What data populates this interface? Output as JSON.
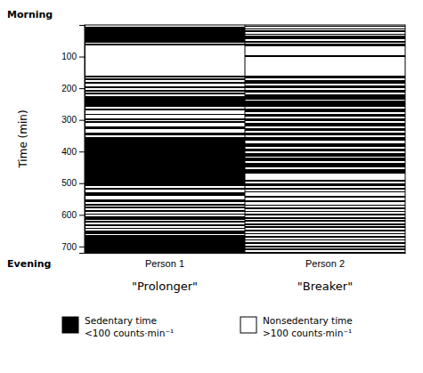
{
  "chart_data": {
    "type": "timeline",
    "ylabel": "Time (min)",
    "ylim": [
      720,
      0
    ],
    "yticks": [
      100,
      200,
      300,
      400,
      500,
      600,
      700
    ],
    "top_label": "Morning",
    "bottom_label": "Evening",
    "categories": [
      "Person 1",
      "Person 2"
    ],
    "category_annotations": [
      "\"Prolonger\"",
      "\"Breaker\""
    ],
    "series": [
      {
        "name": "Sedentary time\n<100 counts·min⁻¹",
        "color": "black"
      },
      {
        "name": "Nonsedentary time\n>100 counts·min⁻¹",
        "color": "white"
      }
    ],
    "legend": "bottom",
    "segments": [
      [
        {
          "start": 0,
          "end": 5,
          "series": 1
        },
        {
          "start": 5,
          "end": 55,
          "series": 0
        },
        {
          "start": 55,
          "end": 60,
          "series": 1
        },
        {
          "start": 60,
          "end": 65,
          "series": 0
        },
        {
          "start": 65,
          "end": 160,
          "series": 1
        },
        {
          "start": 160,
          "end": 165,
          "series": 0
        },
        {
          "start": 165,
          "end": 170,
          "series": 1
        },
        {
          "start": 170,
          "end": 175,
          "series": 0
        },
        {
          "start": 175,
          "end": 180,
          "series": 1
        },
        {
          "start": 180,
          "end": 185,
          "series": 0
        },
        {
          "start": 185,
          "end": 195,
          "series": 1
        },
        {
          "start": 195,
          "end": 200,
          "series": 0
        },
        {
          "start": 200,
          "end": 205,
          "series": 1
        },
        {
          "start": 205,
          "end": 210,
          "series": 0
        },
        {
          "start": 210,
          "end": 215,
          "series": 1
        },
        {
          "start": 215,
          "end": 220,
          "series": 0
        },
        {
          "start": 220,
          "end": 225,
          "series": 1
        },
        {
          "start": 225,
          "end": 260,
          "series": 0
        },
        {
          "start": 260,
          "end": 265,
          "series": 1
        },
        {
          "start": 265,
          "end": 270,
          "series": 0
        },
        {
          "start": 270,
          "end": 280,
          "series": 1
        },
        {
          "start": 280,
          "end": 285,
          "series": 0
        },
        {
          "start": 285,
          "end": 295,
          "series": 1
        },
        {
          "start": 295,
          "end": 300,
          "series": 0
        },
        {
          "start": 300,
          "end": 305,
          "series": 1
        },
        {
          "start": 305,
          "end": 310,
          "series": 0
        },
        {
          "start": 310,
          "end": 320,
          "series": 1
        },
        {
          "start": 320,
          "end": 330,
          "series": 0
        },
        {
          "start": 330,
          "end": 340,
          "series": 1
        },
        {
          "start": 340,
          "end": 350,
          "series": 0
        },
        {
          "start": 350,
          "end": 355,
          "series": 1
        },
        {
          "start": 355,
          "end": 510,
          "series": 0
        },
        {
          "start": 510,
          "end": 515,
          "series": 1
        },
        {
          "start": 515,
          "end": 520,
          "series": 0
        },
        {
          "start": 520,
          "end": 530,
          "series": 1
        },
        {
          "start": 530,
          "end": 540,
          "series": 0
        },
        {
          "start": 540,
          "end": 550,
          "series": 1
        },
        {
          "start": 550,
          "end": 560,
          "series": 0
        },
        {
          "start": 560,
          "end": 565,
          "series": 1
        },
        {
          "start": 565,
          "end": 570,
          "series": 0
        },
        {
          "start": 570,
          "end": 575,
          "series": 1
        },
        {
          "start": 575,
          "end": 580,
          "series": 0
        },
        {
          "start": 580,
          "end": 585,
          "series": 1
        },
        {
          "start": 585,
          "end": 590,
          "series": 0
        },
        {
          "start": 590,
          "end": 595,
          "series": 1
        },
        {
          "start": 595,
          "end": 600,
          "series": 0
        },
        {
          "start": 600,
          "end": 605,
          "series": 1
        },
        {
          "start": 605,
          "end": 615,
          "series": 0
        },
        {
          "start": 615,
          "end": 620,
          "series": 1
        },
        {
          "start": 620,
          "end": 625,
          "series": 0
        },
        {
          "start": 625,
          "end": 630,
          "series": 1
        },
        {
          "start": 630,
          "end": 635,
          "series": 0
        },
        {
          "start": 635,
          "end": 640,
          "series": 1
        },
        {
          "start": 640,
          "end": 645,
          "series": 0
        },
        {
          "start": 645,
          "end": 650,
          "series": 1
        },
        {
          "start": 650,
          "end": 660,
          "series": 0
        },
        {
          "start": 660,
          "end": 665,
          "series": 1
        },
        {
          "start": 665,
          "end": 720,
          "series": 0
        }
      ],
      [
        {
          "start": 0,
          "end": 3,
          "series": 1
        },
        {
          "start": 3,
          "end": 7,
          "series": 0
        },
        {
          "start": 7,
          "end": 10,
          "series": 1
        },
        {
          "start": 10,
          "end": 15,
          "series": 0
        },
        {
          "start": 15,
          "end": 18,
          "series": 1
        },
        {
          "start": 18,
          "end": 23,
          "series": 0
        },
        {
          "start": 23,
          "end": 27,
          "series": 1
        },
        {
          "start": 27,
          "end": 32,
          "series": 0
        },
        {
          "start": 32,
          "end": 35,
          "series": 1
        },
        {
          "start": 35,
          "end": 45,
          "series": 0
        },
        {
          "start": 45,
          "end": 50,
          "series": 1
        },
        {
          "start": 50,
          "end": 55,
          "series": 0
        },
        {
          "start": 55,
          "end": 60,
          "series": 1
        },
        {
          "start": 60,
          "end": 68,
          "series": 0
        },
        {
          "start": 68,
          "end": 95,
          "series": 1
        },
        {
          "start": 95,
          "end": 100,
          "series": 0
        },
        {
          "start": 100,
          "end": 160,
          "series": 1
        },
        {
          "start": 160,
          "end": 170,
          "series": 0
        },
        {
          "start": 170,
          "end": 175,
          "series": 1
        },
        {
          "start": 175,
          "end": 185,
          "series": 0
        },
        {
          "start": 185,
          "end": 190,
          "series": 1
        },
        {
          "start": 190,
          "end": 200,
          "series": 0
        },
        {
          "start": 200,
          "end": 205,
          "series": 1
        },
        {
          "start": 205,
          "end": 215,
          "series": 0
        },
        {
          "start": 215,
          "end": 220,
          "series": 1
        },
        {
          "start": 220,
          "end": 235,
          "series": 0
        },
        {
          "start": 235,
          "end": 240,
          "series": 1
        },
        {
          "start": 240,
          "end": 260,
          "series": 0
        },
        {
          "start": 260,
          "end": 265,
          "series": 1
        },
        {
          "start": 265,
          "end": 275,
          "series": 0
        },
        {
          "start": 275,
          "end": 280,
          "series": 1
        },
        {
          "start": 280,
          "end": 290,
          "series": 0
        },
        {
          "start": 290,
          "end": 295,
          "series": 1
        },
        {
          "start": 295,
          "end": 305,
          "series": 0
        },
        {
          "start": 305,
          "end": 310,
          "series": 1
        },
        {
          "start": 310,
          "end": 320,
          "series": 0
        },
        {
          "start": 320,
          "end": 325,
          "series": 1
        },
        {
          "start": 325,
          "end": 335,
          "series": 0
        },
        {
          "start": 335,
          "end": 340,
          "series": 1
        },
        {
          "start": 340,
          "end": 350,
          "series": 0
        },
        {
          "start": 350,
          "end": 355,
          "series": 1
        },
        {
          "start": 355,
          "end": 365,
          "series": 0
        },
        {
          "start": 365,
          "end": 375,
          "series": 1
        },
        {
          "start": 375,
          "end": 385,
          "series": 0
        },
        {
          "start": 385,
          "end": 390,
          "series": 1
        },
        {
          "start": 390,
          "end": 400,
          "series": 0
        },
        {
          "start": 400,
          "end": 405,
          "series": 1
        },
        {
          "start": 405,
          "end": 415,
          "series": 0
        },
        {
          "start": 415,
          "end": 420,
          "series": 1
        },
        {
          "start": 420,
          "end": 430,
          "series": 0
        },
        {
          "start": 430,
          "end": 435,
          "series": 1
        },
        {
          "start": 435,
          "end": 450,
          "series": 0
        },
        {
          "start": 450,
          "end": 455,
          "series": 1
        },
        {
          "start": 455,
          "end": 470,
          "series": 0
        },
        {
          "start": 470,
          "end": 490,
          "series": 1
        },
        {
          "start": 490,
          "end": 495,
          "series": 0
        },
        {
          "start": 495,
          "end": 500,
          "series": 1
        },
        {
          "start": 500,
          "end": 510,
          "series": 0
        },
        {
          "start": 510,
          "end": 515,
          "series": 1
        },
        {
          "start": 515,
          "end": 520,
          "series": 0
        },
        {
          "start": 520,
          "end": 525,
          "series": 1
        },
        {
          "start": 525,
          "end": 530,
          "series": 0
        },
        {
          "start": 530,
          "end": 540,
          "series": 1
        },
        {
          "start": 540,
          "end": 545,
          "series": 0
        },
        {
          "start": 545,
          "end": 555,
          "series": 1
        },
        {
          "start": 555,
          "end": 560,
          "series": 0
        },
        {
          "start": 560,
          "end": 567,
          "series": 1
        },
        {
          "start": 567,
          "end": 572,
          "series": 0
        },
        {
          "start": 572,
          "end": 577,
          "series": 1
        },
        {
          "start": 577,
          "end": 582,
          "series": 0
        },
        {
          "start": 582,
          "end": 587,
          "series": 1
        },
        {
          "start": 587,
          "end": 592,
          "series": 0
        },
        {
          "start": 592,
          "end": 597,
          "series": 1
        },
        {
          "start": 597,
          "end": 602,
          "series": 0
        },
        {
          "start": 602,
          "end": 607,
          "series": 1
        },
        {
          "start": 607,
          "end": 612,
          "series": 0
        },
        {
          "start": 612,
          "end": 617,
          "series": 1
        },
        {
          "start": 617,
          "end": 622,
          "series": 0
        },
        {
          "start": 622,
          "end": 627,
          "series": 1
        },
        {
          "start": 627,
          "end": 632,
          "series": 0
        },
        {
          "start": 632,
          "end": 637,
          "series": 1
        },
        {
          "start": 637,
          "end": 642,
          "series": 0
        },
        {
          "start": 642,
          "end": 647,
          "series": 1
        },
        {
          "start": 647,
          "end": 652,
          "series": 0
        },
        {
          "start": 652,
          "end": 657,
          "series": 1
        },
        {
          "start": 657,
          "end": 662,
          "series": 0
        },
        {
          "start": 662,
          "end": 667,
          "series": 1
        },
        {
          "start": 667,
          "end": 672,
          "series": 0
        },
        {
          "start": 672,
          "end": 677,
          "series": 1
        },
        {
          "start": 677,
          "end": 682,
          "series": 0
        },
        {
          "start": 682,
          "end": 687,
          "series": 1
        },
        {
          "start": 687,
          "end": 692,
          "series": 0
        },
        {
          "start": 692,
          "end": 697,
          "series": 1
        },
        {
          "start": 697,
          "end": 702,
          "series": 0
        },
        {
          "start": 702,
          "end": 707,
          "series": 1
        },
        {
          "start": 707,
          "end": 712,
          "series": 0
        },
        {
          "start": 712,
          "end": 717,
          "series": 1
        },
        {
          "start": 717,
          "end": 720,
          "series": 0
        }
      ]
    ]
  }
}
